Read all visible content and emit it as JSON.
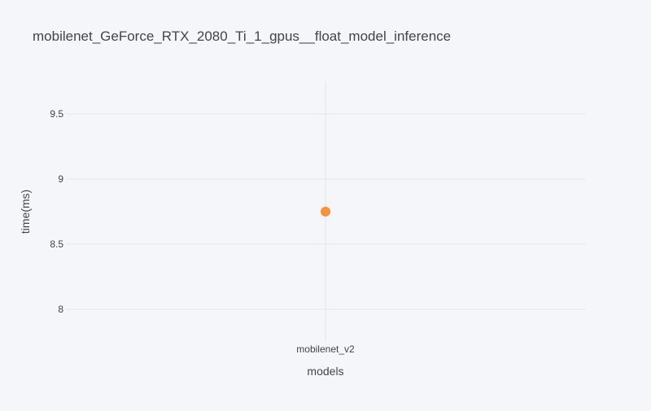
{
  "chart_data": {
    "type": "scatter",
    "title": "mobilenet_GeForce_RTX_2080_Ti_1_gpus__float_model_inference",
    "xlabel": "models",
    "ylabel": "time(ms)",
    "categories": [
      "mobilenet_v2"
    ],
    "series": [
      {
        "values": [
          8.75
        ],
        "color": "#f7923a"
      }
    ],
    "yticks": [
      {
        "value": 8,
        "label": "8"
      },
      {
        "value": 8.5,
        "label": "8.5"
      },
      {
        "value": 9,
        "label": "9"
      },
      {
        "value": 9.5,
        "label": "9.5"
      }
    ],
    "ylim": [
      7.75,
      9.75
    ],
    "grid": true,
    "legend": "none"
  }
}
